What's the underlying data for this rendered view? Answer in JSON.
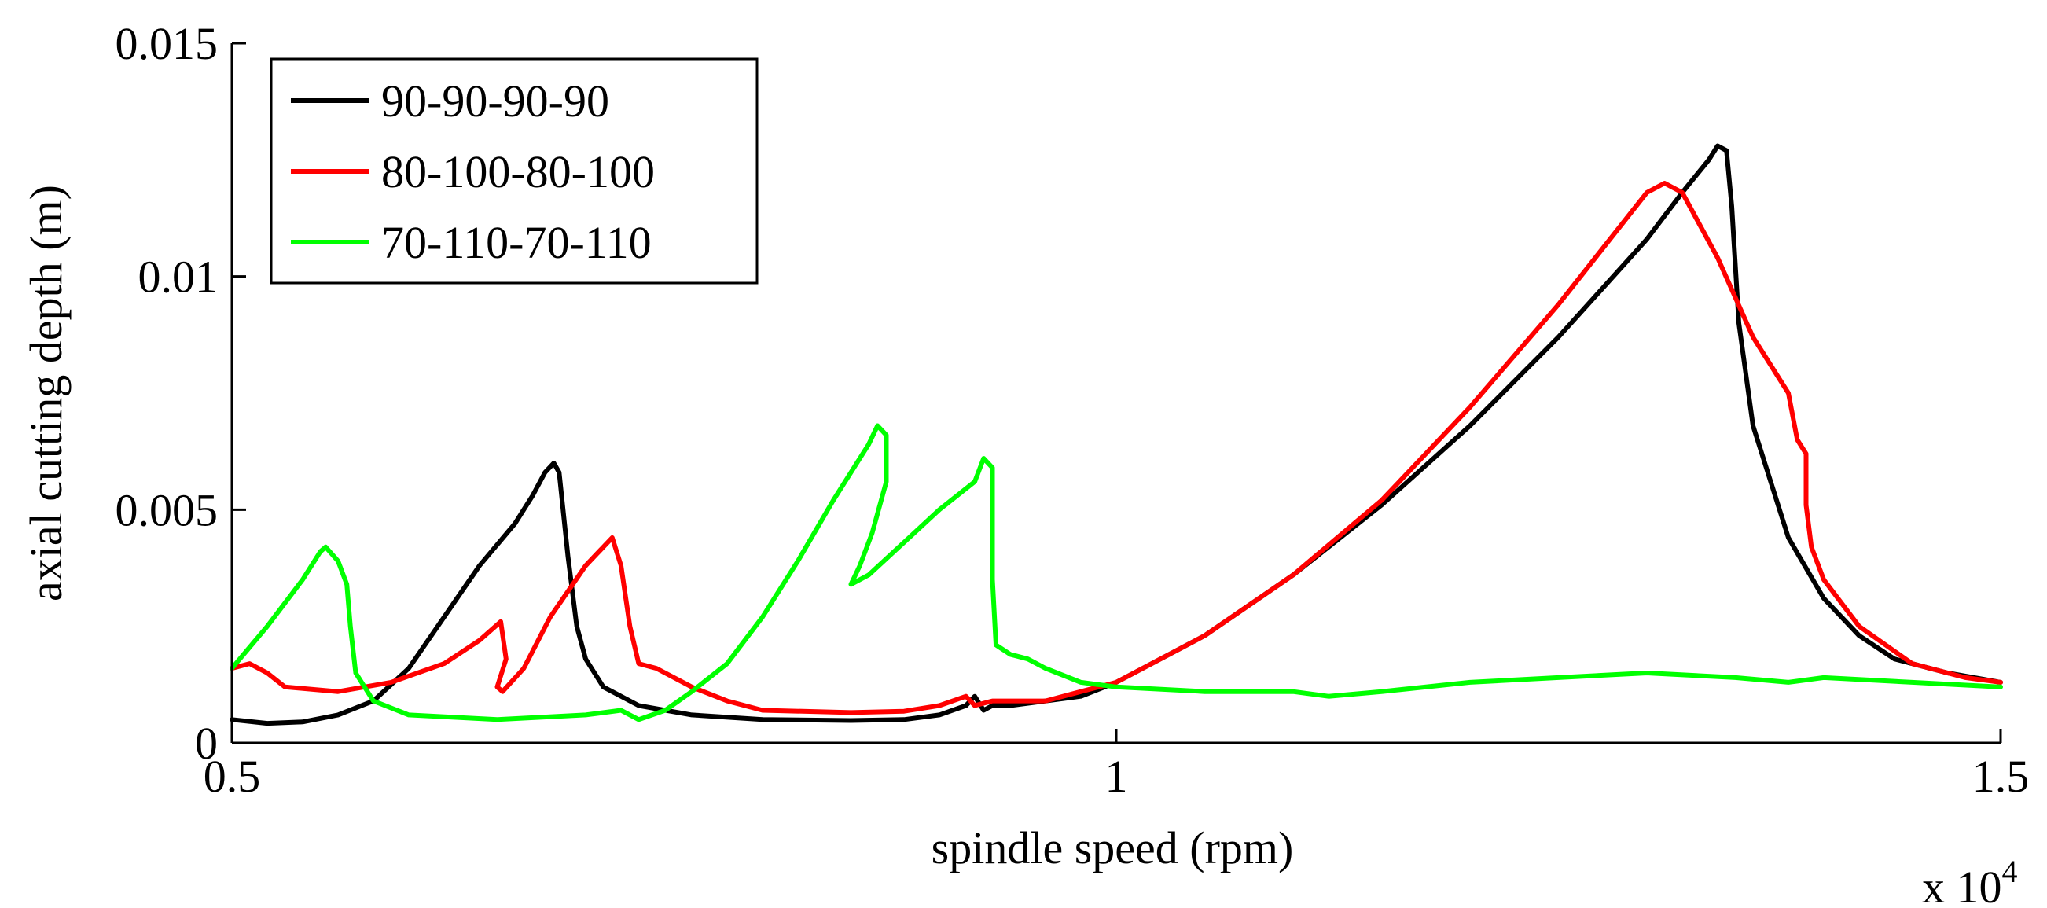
{
  "chart_data": {
    "type": "line",
    "title": "",
    "xlabel": "spindle speed (rpm)",
    "ylabel": "axial cutting depth (m)",
    "x_multiplier_label": "x 10",
    "x_multiplier_exponent": "4",
    "xlim": [
      0.5,
      1.5
    ],
    "ylim": [
      0,
      0.015
    ],
    "xticks": [
      0.5,
      1,
      1.5
    ],
    "xtick_labels": [
      "0.5",
      "1",
      "1.5"
    ],
    "yticks": [
      0,
      0.005,
      0.01,
      0.015
    ],
    "ytick_labels": [
      "0",
      "0.005",
      "0.01",
      "0.015"
    ],
    "grid": false,
    "legend_position": "top-left",
    "series": [
      {
        "name": "90-90-90-90",
        "color": "#000000",
        "points": [
          [
            0.5,
            0.0005
          ],
          [
            0.52,
            0.00042
          ],
          [
            0.54,
            0.00045
          ],
          [
            0.56,
            0.0006
          ],
          [
            0.58,
            0.0009
          ],
          [
            0.6,
            0.0016
          ],
          [
            0.62,
            0.0027
          ],
          [
            0.64,
            0.0038
          ],
          [
            0.66,
            0.0047
          ],
          [
            0.67,
            0.0053
          ],
          [
            0.677,
            0.0058
          ],
          [
            0.682,
            0.006
          ],
          [
            0.685,
            0.0058
          ],
          [
            0.69,
            0.004
          ],
          [
            0.695,
            0.0025
          ],
          [
            0.7,
            0.0018
          ],
          [
            0.71,
            0.0012
          ],
          [
            0.73,
            0.0008
          ],
          [
            0.76,
            0.0006
          ],
          [
            0.8,
            0.0005
          ],
          [
            0.85,
            0.00048
          ],
          [
            0.88,
            0.0005
          ],
          [
            0.9,
            0.0006
          ],
          [
            0.915,
            0.0008
          ],
          [
            0.92,
            0.001
          ],
          [
            0.925,
            0.0007
          ],
          [
            0.93,
            0.0008
          ],
          [
            0.94,
            0.0008
          ],
          [
            0.96,
            0.0009
          ],
          [
            0.98,
            0.001
          ],
          [
            1.0,
            0.0013
          ],
          [
            1.05,
            0.0023
          ],
          [
            1.1,
            0.0036
          ],
          [
            1.15,
            0.0051
          ],
          [
            1.2,
            0.0068
          ],
          [
            1.25,
            0.0087
          ],
          [
            1.3,
            0.0108
          ],
          [
            1.32,
            0.0118
          ],
          [
            1.335,
            0.0125
          ],
          [
            1.34,
            0.0128
          ],
          [
            1.345,
            0.0127
          ],
          [
            1.348,
            0.0115
          ],
          [
            1.352,
            0.009
          ],
          [
            1.36,
            0.0068
          ],
          [
            1.38,
            0.0044
          ],
          [
            1.4,
            0.0031
          ],
          [
            1.42,
            0.0023
          ],
          [
            1.44,
            0.0018
          ],
          [
            1.47,
            0.0015
          ],
          [
            1.5,
            0.0013
          ]
        ]
      },
      {
        "name": "80-100-80-100",
        "color": "#ff0000",
        "points": [
          [
            0.5,
            0.0016
          ],
          [
            0.51,
            0.0017
          ],
          [
            0.52,
            0.0015
          ],
          [
            0.53,
            0.0012
          ],
          [
            0.56,
            0.0011
          ],
          [
            0.59,
            0.0013
          ],
          [
            0.62,
            0.0017
          ],
          [
            0.64,
            0.0022
          ],
          [
            0.652,
            0.0026
          ],
          [
            0.655,
            0.0018
          ],
          [
            0.65,
            0.0012
          ],
          [
            0.653,
            0.0011
          ],
          [
            0.665,
            0.0016
          ],
          [
            0.68,
            0.0027
          ],
          [
            0.7,
            0.0038
          ],
          [
            0.71,
            0.0042
          ],
          [
            0.715,
            0.0044
          ],
          [
            0.72,
            0.0038
          ],
          [
            0.725,
            0.0025
          ],
          [
            0.73,
            0.0017
          ],
          [
            0.74,
            0.0016
          ],
          [
            0.76,
            0.0012
          ],
          [
            0.78,
            0.0009
          ],
          [
            0.8,
            0.0007
          ],
          [
            0.85,
            0.00065
          ],
          [
            0.88,
            0.00068
          ],
          [
            0.9,
            0.0008
          ],
          [
            0.915,
            0.001
          ],
          [
            0.92,
            0.0008
          ],
          [
            0.93,
            0.0009
          ],
          [
            0.96,
            0.0009
          ],
          [
            0.98,
            0.0011
          ],
          [
            1.0,
            0.0013
          ],
          [
            1.05,
            0.0023
          ],
          [
            1.1,
            0.0036
          ],
          [
            1.15,
            0.0052
          ],
          [
            1.2,
            0.0072
          ],
          [
            1.25,
            0.0094
          ],
          [
            1.3,
            0.0118
          ],
          [
            1.31,
            0.012
          ],
          [
            1.32,
            0.0118
          ],
          [
            1.34,
            0.0104
          ],
          [
            1.36,
            0.0087
          ],
          [
            1.38,
            0.0075
          ],
          [
            1.385,
            0.0065
          ],
          [
            1.39,
            0.0062
          ],
          [
            1.39,
            0.0051
          ],
          [
            1.393,
            0.0042
          ],
          [
            1.4,
            0.0035
          ],
          [
            1.42,
            0.0025
          ],
          [
            1.45,
            0.0017
          ],
          [
            1.48,
            0.0014
          ],
          [
            1.5,
            0.0013
          ]
        ]
      },
      {
        "name": "70-110-70-110",
        "color": "#00ff00",
        "points": [
          [
            0.5,
            0.0016
          ],
          [
            0.52,
            0.0025
          ],
          [
            0.54,
            0.0035
          ],
          [
            0.55,
            0.0041
          ],
          [
            0.553,
            0.0042
          ],
          [
            0.56,
            0.0039
          ],
          [
            0.565,
            0.0034
          ],
          [
            0.567,
            0.0025
          ],
          [
            0.57,
            0.0015
          ],
          [
            0.58,
            0.0009
          ],
          [
            0.6,
            0.0006
          ],
          [
            0.65,
            0.0005
          ],
          [
            0.7,
            0.0006
          ],
          [
            0.72,
            0.0007
          ],
          [
            0.73,
            0.0005
          ],
          [
            0.745,
            0.0007
          ],
          [
            0.76,
            0.0011
          ],
          [
            0.78,
            0.0017
          ],
          [
            0.8,
            0.0027
          ],
          [
            0.82,
            0.0039
          ],
          [
            0.84,
            0.0052
          ],
          [
            0.86,
            0.0064
          ],
          [
            0.865,
            0.0068
          ],
          [
            0.87,
            0.0066
          ],
          [
            0.87,
            0.0056
          ],
          [
            0.862,
            0.0045
          ],
          [
            0.855,
            0.0038
          ],
          [
            0.85,
            0.0034
          ],
          [
            0.86,
            0.0036
          ],
          [
            0.88,
            0.0043
          ],
          [
            0.9,
            0.005
          ],
          [
            0.92,
            0.0056
          ],
          [
            0.925,
            0.0061
          ],
          [
            0.93,
            0.0059
          ],
          [
            0.93,
            0.0035
          ],
          [
            0.932,
            0.0021
          ],
          [
            0.94,
            0.0019
          ],
          [
            0.95,
            0.0018
          ],
          [
            0.96,
            0.0016
          ],
          [
            0.98,
            0.0013
          ],
          [
            1.0,
            0.0012
          ],
          [
            1.05,
            0.0011
          ],
          [
            1.1,
            0.0011
          ],
          [
            1.12,
            0.001
          ],
          [
            1.15,
            0.0011
          ],
          [
            1.2,
            0.0013
          ],
          [
            1.25,
            0.0014
          ],
          [
            1.3,
            0.0015
          ],
          [
            1.35,
            0.0014
          ],
          [
            1.38,
            0.0013
          ],
          [
            1.4,
            0.0014
          ],
          [
            1.45,
            0.0013
          ],
          [
            1.5,
            0.0012
          ]
        ]
      }
    ]
  }
}
